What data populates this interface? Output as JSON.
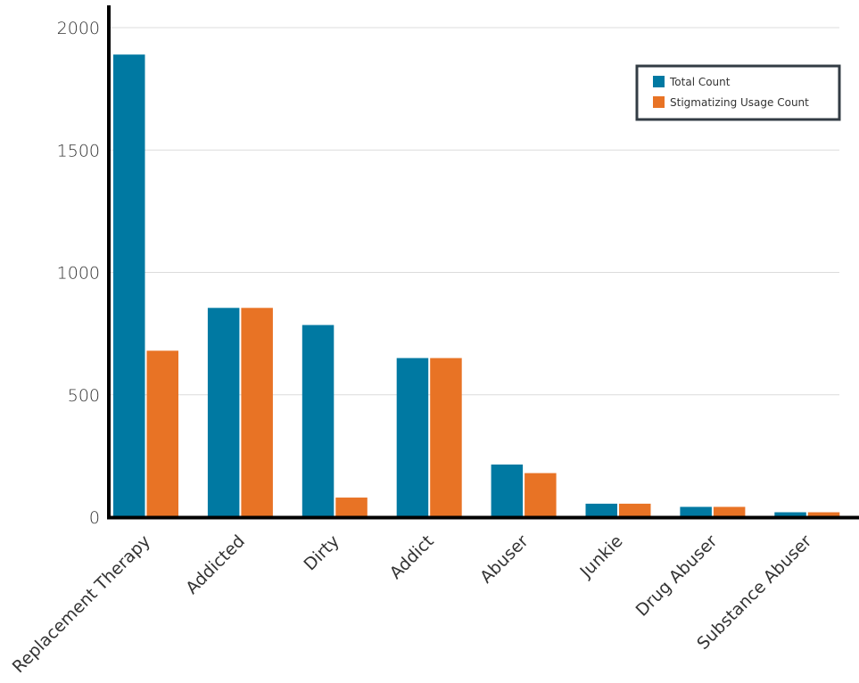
{
  "chart_data": {
    "type": "bar",
    "categories": [
      "Replacement Therapy",
      "Addicted",
      "Dirty",
      "Addict",
      "Abuser",
      "Junkie",
      "Drug Abuser",
      "Substance Abuser"
    ],
    "series": [
      {
        "name": "Total Count",
        "color": "#0079a2",
        "values": [
          1890,
          855,
          785,
          650,
          215,
          55,
          42,
          20
        ]
      },
      {
        "name": "Stigmatizing Usage Count",
        "color": "#e87325",
        "values": [
          680,
          855,
          80,
          650,
          180,
          55,
          42,
          20
        ]
      }
    ],
    "yticks": [
      0,
      500,
      1000,
      1500,
      2000
    ],
    "ylim": [
      0,
      2000
    ],
    "grid": true,
    "legend_position": "top-right"
  }
}
